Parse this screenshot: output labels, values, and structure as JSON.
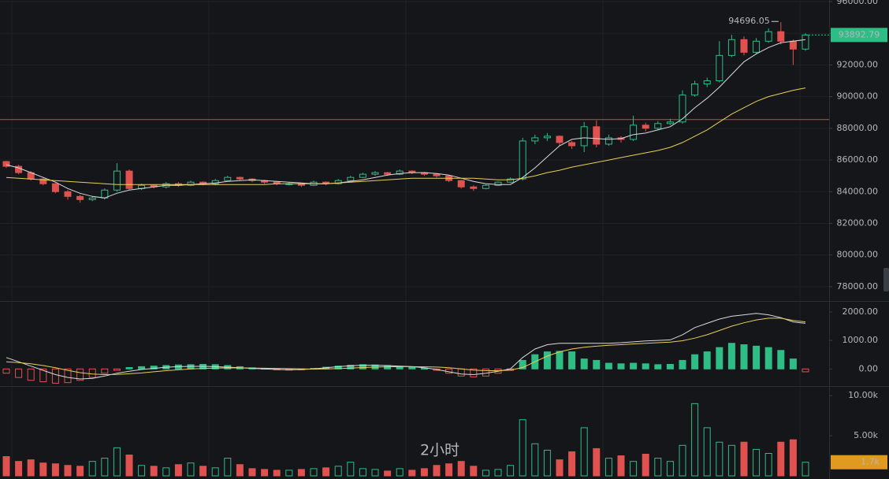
{
  "chart_data": [
    {
      "type": "candlestick",
      "open": [
        85900,
        85600,
        85200,
        84800,
        84500,
        84000,
        83700,
        83500,
        83600,
        84100,
        85300,
        84200,
        84400,
        84300,
        84500,
        84400,
        84600,
        84500,
        84700,
        84900,
        84800,
        84700,
        84600,
        84500,
        84500,
        84400,
        84600,
        84500,
        84700,
        84900,
        85100,
        85200,
        85100,
        85300,
        85200,
        85100,
        85000,
        84700,
        84300,
        84200,
        84400,
        84600,
        84800,
        87200,
        87400,
        87500,
        87100,
        86900,
        88100,
        87000,
        87400,
        87300,
        88200,
        88000,
        88300,
        88400,
        90100,
        90800,
        91000,
        92600,
        93600,
        92800,
        93500,
        94100,
        93500,
        93000
      ],
      "high": [
        85950,
        85700,
        85300,
        84900,
        84550,
        84100,
        83800,
        83700,
        84200,
        85800,
        85400,
        84500,
        84450,
        84600,
        84600,
        84700,
        84650,
        84800,
        85000,
        84950,
        84850,
        84750,
        84650,
        84600,
        84550,
        84700,
        84650,
        84800,
        85000,
        85200,
        85300,
        85250,
        85400,
        85350,
        85250,
        85150,
        85050,
        84750,
        84400,
        84450,
        84650,
        84900,
        87400,
        87600,
        87700,
        87550,
        87200,
        88400,
        88500,
        87600,
        87500,
        88800,
        88350,
        88450,
        88600,
        90400,
        91000,
        91200,
        93500,
        93900,
        93800,
        93700,
        94300,
        94696.05,
        93600,
        94000
      ],
      "low": [
        85500,
        85100,
        84700,
        84400,
        83900,
        83500,
        83300,
        83400,
        83500,
        84000,
        84100,
        84100,
        84200,
        84200,
        84300,
        84350,
        84400,
        84400,
        84650,
        84700,
        84600,
        84500,
        84400,
        84400,
        84300,
        84350,
        84400,
        84450,
        84650,
        84850,
        85000,
        85000,
        85050,
        85100,
        85000,
        84900,
        84600,
        84200,
        84050,
        84150,
        84350,
        84550,
        84700,
        87000,
        87200,
        86900,
        86700,
        86500,
        86800,
        86900,
        87100,
        87200,
        87800,
        87900,
        88200,
        88300,
        90000,
        90600,
        90900,
        92500,
        92600,
        92700,
        93400,
        93300,
        92000,
        92900
      ],
      "close": [
        85600,
        85200,
        84800,
        84500,
        84000,
        83700,
        83500,
        83600,
        84100,
        85300,
        84200,
        84400,
        84300,
        84500,
        84400,
        84600,
        84500,
        84700,
        84900,
        84800,
        84700,
        84600,
        84500,
        84500,
        84400,
        84600,
        84500,
        84700,
        84900,
        85100,
        85200,
        85100,
        85300,
        85200,
        85100,
        85000,
        84700,
        84300,
        84200,
        84400,
        84600,
        84800,
        87200,
        87400,
        87500,
        87100,
        86900,
        88100,
        87000,
        87400,
        87300,
        88200,
        88000,
        88300,
        88400,
        90100,
        90800,
        91000,
        92600,
        93600,
        92800,
        93500,
        94100,
        93500,
        93000,
        93892.79
      ],
      "lines": [
        {
          "color": "#d9dadc",
          "values": [
            85700,
            85500,
            85200,
            84900,
            84600,
            84200,
            83900,
            83700,
            83600,
            83900,
            84100,
            84200,
            84300,
            84400,
            84400,
            84450,
            84500,
            84550,
            84650,
            84700,
            84750,
            84700,
            84650,
            84600,
            84550,
            84500,
            84500,
            84550,
            84650,
            84750,
            84900,
            85050,
            85150,
            85200,
            85200,
            85150,
            85050,
            84850,
            84650,
            84500,
            84450,
            84450,
            84900,
            85500,
            86200,
            86900,
            87300,
            87400,
            87350,
            87300,
            87350,
            87600,
            87700,
            87900,
            88100,
            88600,
            89300,
            89900,
            90600,
            91400,
            92200,
            92700,
            93100,
            93400,
            93500,
            93600
          ]
        },
        {
          "color": "#e8cf5a",
          "values": [
            84900,
            84850,
            84800,
            84750,
            84700,
            84650,
            84600,
            84550,
            84500,
            84450,
            84450,
            84450,
            84450,
            84450,
            84450,
            84450,
            84450,
            84450,
            84450,
            84450,
            84450,
            84450,
            84500,
            84500,
            84500,
            84500,
            84500,
            84550,
            84600,
            84650,
            84700,
            84750,
            84800,
            84850,
            84850,
            84850,
            84850,
            84850,
            84850,
            84800,
            84750,
            84750,
            84850,
            85000,
            85200,
            85350,
            85550,
            85700,
            85850,
            86000,
            86150,
            86300,
            86450,
            86600,
            86800,
            87100,
            87500,
            87900,
            88400,
            88900,
            89300,
            89700,
            90000,
            90200,
            90400,
            90550
          ]
        }
      ],
      "up_color": "#2ebd85",
      "down_color": "#e0524f",
      "ref_line": {
        "value": 88550,
        "color": "#d9423f"
      },
      "ylim": [
        77100,
        96100
      ],
      "yticks": [
        {
          "value": 96000,
          "label": "96000.00"
        },
        {
          "value": 94000,
          "label": "94000.00"
        },
        {
          "value": 92000,
          "label": "92000.00"
        },
        {
          "value": 90000,
          "label": "90000.00"
        },
        {
          "value": 88000,
          "label": "88000.00"
        },
        {
          "value": 86000,
          "label": "86000.00"
        },
        {
          "value": 84000,
          "label": "84000.00"
        },
        {
          "value": 82000,
          "label": "82000.00"
        },
        {
          "value": 80000,
          "label": "80000.00"
        },
        {
          "value": 78000,
          "label": "78000.00"
        }
      ]
    },
    {
      "type": "macd",
      "values": [
        -150,
        -300,
        -400,
        -450,
        -500,
        -480,
        -400,
        -300,
        -150,
        -50,
        50,
        80,
        100,
        120,
        140,
        150,
        160,
        150,
        120,
        80,
        40,
        20,
        -30,
        -40,
        -30,
        20,
        60,
        100,
        130,
        150,
        140,
        120,
        90,
        60,
        20,
        -50,
        -150,
        -250,
        -280,
        -250,
        -150,
        -50,
        300,
        500,
        600,
        620,
        600,
        350,
        300,
        200,
        180,
        200,
        180,
        150,
        160,
        300,
        500,
        600,
        750,
        900,
        850,
        800,
        750,
        650,
        350,
        -100
      ],
      "lines": [
        {
          "color": "#d9dadc",
          "values": [
            400,
            250,
            100,
            -50,
            -200,
            -300,
            -350,
            -330,
            -250,
            -150,
            -80,
            -20,
            20,
            60,
            80,
            90,
            90,
            80,
            60,
            40,
            20,
            0,
            -20,
            -30,
            -20,
            0,
            40,
            80,
            110,
            130,
            130,
            120,
            100,
            80,
            40,
            -20,
            -100,
            -180,
            -200,
            -150,
            -80,
            0,
            400,
            700,
            850,
            900,
            900,
            900,
            900,
            900,
            920,
            950,
            980,
            1000,
            1020,
            1200,
            1450,
            1600,
            1750,
            1850,
            1900,
            1950,
            1900,
            1800,
            1650,
            1600
          ]
        },
        {
          "color": "#e8cf5a",
          "values": [
            250,
            220,
            180,
            120,
            40,
            -50,
            -130,
            -180,
            -200,
            -190,
            -170,
            -140,
            -100,
            -60,
            -30,
            0,
            20,
            30,
            35,
            35,
            30,
            25,
            20,
            10,
            0,
            -5,
            0,
            10,
            30,
            50,
            65,
            75,
            80,
            80,
            75,
            65,
            40,
            0,
            -40,
            -60,
            -60,
            -40,
            50,
            250,
            450,
            600,
            700,
            760,
            800,
            830,
            850,
            880,
            900,
            920,
            940,
            990,
            1080,
            1200,
            1350,
            1500,
            1620,
            1720,
            1780,
            1780,
            1700,
            1650
          ]
        }
      ],
      "up_color": "#2ebd85",
      "down_color": "#e0524f",
      "ylim": [
        -600,
        2330
      ],
      "yticks": [
        {
          "value": 2000,
          "label": "2000.00"
        },
        {
          "value": 1000,
          "label": "1000.00"
        },
        {
          "value": 0,
          "label": "0.00"
        }
      ]
    },
    {
      "type": "volume",
      "values": [
        2400,
        1800,
        2000,
        1600,
        1500,
        1300,
        1200,
        1800,
        2200,
        3500,
        2600,
        1300,
        1200,
        1000,
        1400,
        1600,
        1200,
        1000,
        2200,
        1400,
        900,
        800,
        700,
        700,
        800,
        900,
        1000,
        1200,
        1700,
        900,
        800,
        600,
        900,
        700,
        900,
        1300,
        1500,
        1800,
        1200,
        700,
        800,
        1300,
        7000,
        4000,
        3200,
        2000,
        3000,
        6000,
        3400,
        2200,
        2500,
        1800,
        2700,
        2200,
        1800,
        3800,
        9000,
        6000,
        4200,
        3800,
        4200,
        3300,
        2800,
        4200,
        4500,
        1700
      ],
      "value_labels": [
        null,
        null,
        null,
        null,
        null,
        null,
        null,
        null,
        null,
        null,
        null,
        null,
        null,
        null,
        null,
        null,
        null,
        null,
        null,
        null,
        null,
        null,
        null,
        null,
        null,
        null,
        null,
        null,
        null,
        null,
        null,
        null,
        null,
        null,
        null,
        null,
        null,
        null,
        null,
        null,
        null,
        null,
        null,
        null,
        null,
        null,
        null,
        null,
        null,
        null,
        null,
        null,
        null,
        null,
        null,
        null,
        null,
        null,
        null,
        null,
        null,
        null,
        null,
        null,
        null,
        "1.7k"
      ],
      "label_color": "#e09a1f",
      "up_color": "#2ebd85",
      "down_color": "#e0524f",
      "annotation": "2小时",
      "ylim": [
        0,
        11000
      ],
      "yticks": [
        {
          "value": 10000,
          "label": "10.00k"
        },
        {
          "value": 5000,
          "label": "5.00k"
        }
      ]
    }
  ]
}
